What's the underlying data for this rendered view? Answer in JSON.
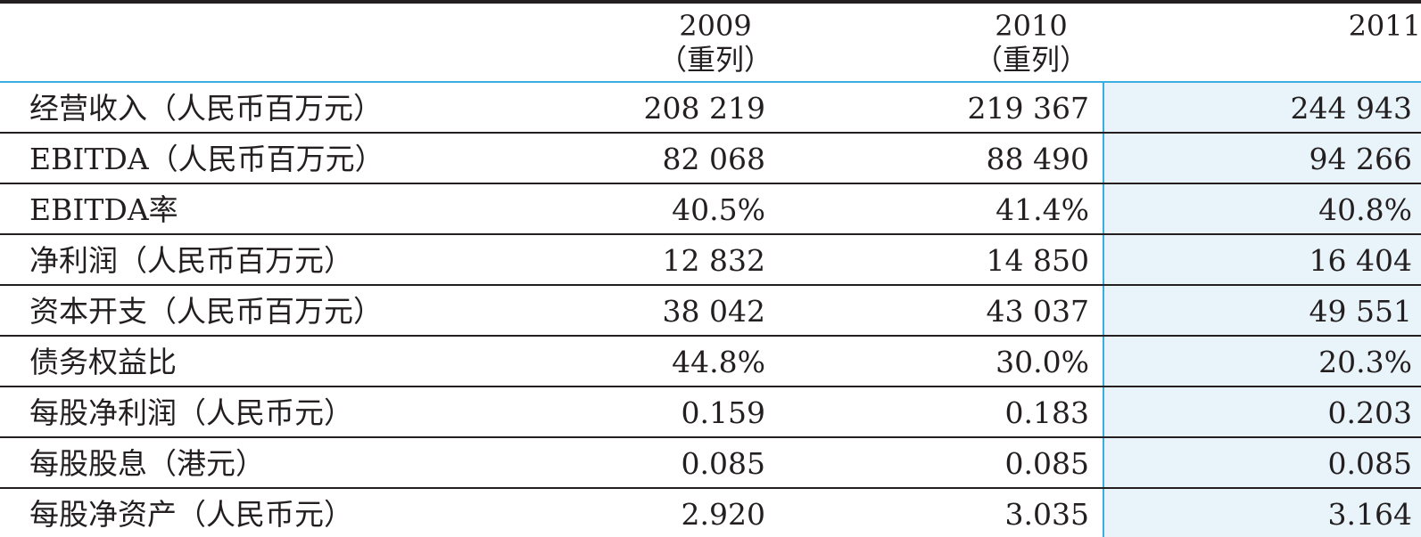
{
  "header": {
    "col_2009": {
      "year": "2009",
      "note": "（重列）"
    },
    "col_2010": {
      "year": "2010",
      "note": "（重列）"
    },
    "col_2011": {
      "year": "2011"
    }
  },
  "rows": [
    {
      "label": "经营收入（人民币百万元）",
      "v2009": "208 219",
      "v2010": "219 367",
      "v2011": "244 943"
    },
    {
      "label": "EBITDA（人民币百万元）",
      "v2009": "82 068",
      "v2010": "88 490",
      "v2011": "94 266"
    },
    {
      "label": "EBITDA率",
      "v2009": "40.5%",
      "v2010": "41.4%",
      "v2011": "40.8%"
    },
    {
      "label": "净利润（人民币百万元）",
      "v2009": "12 832",
      "v2010": "14 850",
      "v2011": "16 404"
    },
    {
      "label": "资本开支（人民币百万元）",
      "v2009": "38 042",
      "v2010": "43 037",
      "v2011": "49 551"
    },
    {
      "label": "债务权益比",
      "v2009": "44.8%",
      "v2010": "30.0%",
      "v2011": "20.3%"
    },
    {
      "label": "每股净利润（人民币元）",
      "v2009": "0.159",
      "v2010": "0.183",
      "v2011": "0.203"
    },
    {
      "label": "每股股息（港元）",
      "v2009": "0.085",
      "v2010": "0.085",
      "v2011": "0.085"
    },
    {
      "label": "每股净资产（人民币元）",
      "v2009": "2.920",
      "v2010": "3.035",
      "v2011": "3.164"
    }
  ],
  "colors": {
    "rule_dark": "#231f20",
    "accent_blue": "#3aaee0",
    "highlight_fill": "#e8f3fa"
  }
}
